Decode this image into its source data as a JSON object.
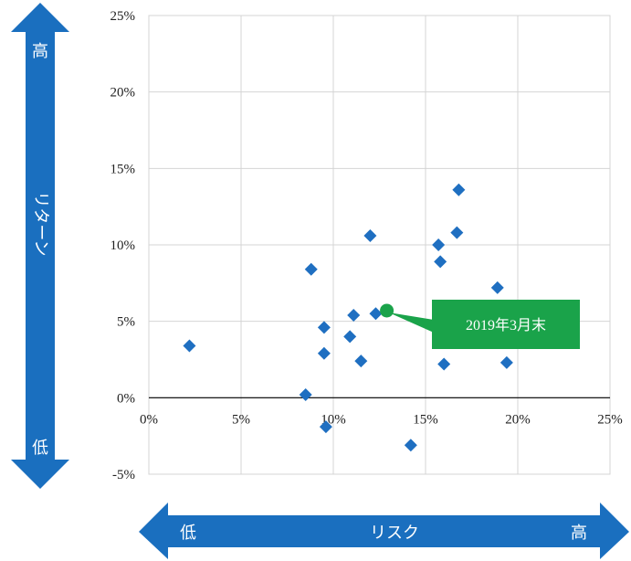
{
  "chart_data": {
    "type": "scatter",
    "x_label_low": "低",
    "x_label_mid": "リスク",
    "x_label_high": "高",
    "y_label_high": "高",
    "y_label_mid": "リターン",
    "y_label_low": "低",
    "xlim": [
      0,
      25
    ],
    "ylim": [
      -5,
      25
    ],
    "x_ticks": [
      "0%",
      "5%",
      "10%",
      "15%",
      "20%",
      "25%"
    ],
    "y_ticks": [
      "25%",
      "20%",
      "15%",
      "10%",
      "5%",
      "0%",
      "-5%"
    ],
    "x_tick_values": [
      0,
      5,
      10,
      15,
      20,
      25
    ],
    "y_tick_values": [
      25,
      20,
      15,
      10,
      5,
      0,
      -5
    ],
    "grid": true,
    "points": [
      {
        "x": 2.2,
        "y": 3.4
      },
      {
        "x": 8.5,
        "y": 0.2
      },
      {
        "x": 8.8,
        "y": 8.4
      },
      {
        "x": 9.5,
        "y": 4.6
      },
      {
        "x": 9.5,
        "y": 2.9
      },
      {
        "x": 9.6,
        "y": -1.9
      },
      {
        "x": 10.9,
        "y": 4.0
      },
      {
        "x": 11.1,
        "y": 5.4
      },
      {
        "x": 11.5,
        "y": 2.4
      },
      {
        "x": 12.0,
        "y": 10.6
      },
      {
        "x": 12.3,
        "y": 5.5
      },
      {
        "x": 14.2,
        "y": -3.1
      },
      {
        "x": 15.7,
        "y": 10.0
      },
      {
        "x": 15.8,
        "y": 8.9
      },
      {
        "x": 16.0,
        "y": 2.2
      },
      {
        "x": 16.7,
        "y": 10.8
      },
      {
        "x": 16.8,
        "y": 13.6
      },
      {
        "x": 18.9,
        "y": 7.2
      },
      {
        "x": 19.4,
        "y": 2.3
      }
    ],
    "highlight": {
      "x": 12.9,
      "y": 5.7,
      "label": "2019年3月末"
    },
    "colors": {
      "marker": "#1f6fc1",
      "arrow": "#1a6fbf",
      "highlight": "#1aa34a",
      "grid": "#d4d4d4",
      "axis": "#000000"
    }
  }
}
